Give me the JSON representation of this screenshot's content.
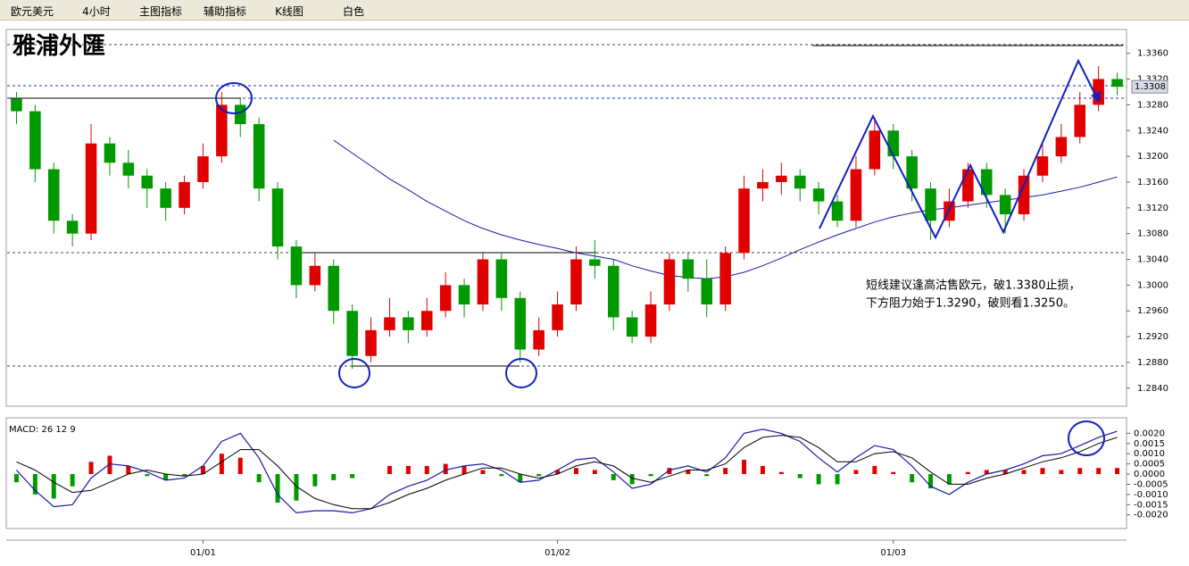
{
  "toolbar": [
    "欧元美元",
    "4小时",
    "主图指标",
    "辅助指标",
    "K线图",
    "白色"
  ],
  "logo": "雅浦外匯",
  "annotation": [
    "短线建议逢高沽售欧元，破1.3380止损，",
    "下方阻力始于1.3290，破则看1.3250。"
  ],
  "chart_data": {
    "type": "candlestick",
    "categories": [
      null,
      null,
      null,
      null,
      null,
      null,
      null,
      null,
      null,
      null,
      "01/01",
      null,
      null,
      null,
      null,
      null,
      null,
      null,
      null,
      null,
      null,
      null,
      null,
      null,
      null,
      null,
      null,
      null,
      null,
      "01/02",
      null,
      null,
      null,
      null,
      null,
      null,
      null,
      null,
      null,
      null,
      null,
      null,
      null,
      null,
      null,
      null,
      null,
      "01/03",
      null,
      null,
      null,
      null,
      null,
      null,
      null,
      null,
      null,
      null,
      null,
      null
    ],
    "open": [
      1.329,
      1.327,
      1.318,
      1.31,
      1.308,
      1.322,
      1.319,
      1.317,
      1.315,
      1.312,
      1.316,
      1.32,
      1.328,
      1.325,
      1.315,
      1.306,
      1.3,
      1.303,
      1.296,
      1.289,
      1.293,
      1.295,
      1.293,
      1.296,
      1.3,
      1.297,
      1.304,
      1.298,
      1.29,
      1.293,
      1.297,
      1.304,
      1.303,
      1.295,
      1.292,
      1.297,
      1.304,
      1.301,
      1.297,
      1.305,
      1.315,
      1.316,
      1.317,
      1.315,
      1.313,
      1.31,
      1.318,
      1.324,
      1.32,
      1.315,
      1.31,
      1.313,
      1.318,
      1.314,
      1.311,
      1.317,
      1.32,
      1.323,
      1.328,
      1.332
    ],
    "high": [
      1.33,
      1.328,
      1.319,
      1.311,
      1.325,
      1.323,
      1.321,
      1.318,
      1.316,
      1.317,
      1.322,
      1.33,
      1.329,
      1.326,
      1.316,
      1.307,
      1.305,
      1.304,
      1.297,
      1.295,
      1.298,
      1.296,
      1.298,
      1.302,
      1.301,
      1.305,
      1.305,
      1.299,
      1.295,
      1.299,
      1.306,
      1.307,
      1.304,
      1.296,
      1.299,
      1.305,
      1.305,
      1.304,
      1.306,
      1.317,
      1.318,
      1.319,
      1.318,
      1.316,
      1.314,
      1.32,
      1.326,
      1.325,
      1.321,
      1.316,
      1.315,
      1.319,
      1.319,
      1.315,
      1.318,
      1.322,
      1.325,
      1.33,
      1.334,
      1.333
    ],
    "low": [
      1.325,
      1.316,
      1.308,
      1.306,
      1.307,
      1.317,
      1.315,
      1.312,
      1.31,
      1.311,
      1.315,
      1.319,
      1.323,
      1.313,
      1.304,
      1.298,
      1.299,
      1.294,
      1.287,
      1.288,
      1.292,
      1.291,
      1.292,
      1.295,
      1.295,
      1.296,
      1.296,
      1.288,
      1.289,
      1.292,
      1.296,
      1.301,
      1.293,
      1.291,
      1.291,
      1.296,
      1.299,
      1.295,
      1.296,
      1.304,
      1.313,
      1.314,
      1.313,
      1.311,
      1.309,
      1.309,
      1.317,
      1.318,
      1.313,
      1.307,
      1.309,
      1.312,
      1.312,
      1.308,
      1.31,
      1.316,
      1.319,
      1.322,
      1.327,
      1.3295
    ],
    "close": [
      1.327,
      1.318,
      1.31,
      1.308,
      1.322,
      1.319,
      1.317,
      1.315,
      1.312,
      1.316,
      1.32,
      1.328,
      1.325,
      1.315,
      1.306,
      1.3,
      1.303,
      1.296,
      1.289,
      1.293,
      1.295,
      1.293,
      1.296,
      1.3,
      1.297,
      1.304,
      1.298,
      1.29,
      1.293,
      1.297,
      1.304,
      1.303,
      1.295,
      1.292,
      1.297,
      1.304,
      1.301,
      1.297,
      1.305,
      1.315,
      1.316,
      1.317,
      1.315,
      1.313,
      1.31,
      1.318,
      1.324,
      1.32,
      1.315,
      1.31,
      1.313,
      1.318,
      1.314,
      1.311,
      1.317,
      1.32,
      1.323,
      1.328,
      1.332,
      1.3308
    ],
    "up_color": "#e00000",
    "down_color": "#009900",
    "ma": {
      "color": "#1a1aa6",
      "values": [
        null,
        null,
        null,
        null,
        null,
        null,
        null,
        null,
        null,
        null,
        null,
        null,
        null,
        null,
        null,
        null,
        null,
        1.3225,
        1.3205,
        1.3185,
        1.3165,
        1.3148,
        1.313,
        1.3115,
        1.31,
        1.3088,
        1.3078,
        1.307,
        1.3063,
        1.3057,
        1.305,
        1.3045,
        1.304,
        1.303,
        1.3022,
        1.3015,
        1.3012,
        1.301,
        1.3013,
        1.302,
        1.303,
        1.3042,
        1.3055,
        1.3067,
        1.3078,
        1.3088,
        1.3098,
        1.3106,
        1.3112,
        1.3117,
        1.312,
        1.3124,
        1.3128,
        1.3132,
        1.3136,
        1.314,
        1.3146,
        1.3152,
        1.316,
        1.3168
      ]
    },
    "last": {
      "value": 1.3308,
      "label": "1.3308"
    },
    "ylim": [
      1.2812,
      1.3397
    ],
    "yticks": [
      {
        "value": 1.284,
        "label": "1.2840"
      },
      {
        "value": 1.288,
        "label": "1.2880"
      },
      {
        "value": 1.292,
        "label": "1.2920"
      },
      {
        "value": 1.296,
        "label": "1.2960"
      },
      {
        "value": 1.3,
        "label": "1.3000"
      },
      {
        "value": 1.304,
        "label": "1.3040"
      },
      {
        "value": 1.308,
        "label": "1.3080"
      },
      {
        "value": 1.312,
        "label": "1.3120"
      },
      {
        "value": 1.316,
        "label": "1.3160"
      },
      {
        "value": 1.32,
        "label": "1.3200"
      },
      {
        "value": 1.324,
        "label": "1.3240"
      },
      {
        "value": 1.328,
        "label": "1.3280"
      },
      {
        "value": 1.332,
        "label": "1.3320"
      },
      {
        "value": 1.336,
        "label": "1.3360"
      }
    ],
    "macd_label": "MACD: 26 12 9",
    "macd": {
      "color": "#1a1aa6",
      "values": [
        0.0002,
        -0.0008,
        -0.0016,
        -0.0015,
        -0.0002,
        0.0005,
        0.0004,
        0.0001,
        -0.0003,
        -0.0002,
        0.0004,
        0.0016,
        0.002,
        0.0008,
        -0.001,
        -0.0019,
        -0.0018,
        -0.0018,
        -0.0019,
        -0.0017,
        -0.001,
        -0.0006,
        -0.0003,
        0.0002,
        0.0004,
        0.0005,
        0.0002,
        -0.0004,
        -0.0003,
        0.0002,
        0.0007,
        0.0008,
        0.0001,
        -0.0007,
        -0.0005,
        0.0002,
        0.0004,
        0.0001,
        0.0008,
        0.002,
        0.0022,
        0.002,
        0.0016,
        0.0008,
        0.0001,
        0.0008,
        0.0014,
        0.0012,
        0.0004,
        -0.0006,
        -0.001,
        -0.0004,
        0.0,
        0.0002,
        0.0005,
        0.0009,
        0.001,
        0.0014,
        0.0018,
        0.0021
      ]
    },
    "signal": {
      "color": "#000000",
      "values": [
        0.0006,
        0.0002,
        -0.0004,
        -0.0009,
        -0.0008,
        -0.0004,
        0.0,
        0.0002,
        0.0,
        -0.0001,
        0.0,
        0.0006,
        0.0012,
        0.0012,
        0.0004,
        -0.0006,
        -0.0012,
        -0.0015,
        -0.0017,
        -0.0017,
        -0.0014,
        -0.001,
        -0.0007,
        -0.0003,
        0.0,
        0.0003,
        0.0003,
        0.0,
        -0.0002,
        0.0,
        0.0004,
        0.0006,
        0.0004,
        -0.0002,
        -0.0004,
        -0.0001,
        0.0002,
        0.0002,
        0.0005,
        0.0013,
        0.0018,
        0.0019,
        0.0018,
        0.0013,
        0.0006,
        0.0006,
        0.001,
        0.0011,
        0.0008,
        0.0001,
        -0.0005,
        -0.0005,
        -0.0002,
        0.0,
        0.0003,
        0.0006,
        0.0008,
        0.0011,
        0.0015,
        0.0018
      ]
    },
    "histogram": [
      -0.0004,
      -0.001,
      -0.0012,
      -0.0006,
      0.0006,
      0.0009,
      0.0004,
      -0.0001,
      -0.0003,
      -0.0001,
      0.0004,
      0.001,
      0.0008,
      -0.0004,
      -0.0014,
      -0.0013,
      -0.0006,
      -0.0003,
      -0.0002,
      0.0,
      0.0004,
      0.0004,
      0.0004,
      0.0005,
      0.0004,
      0.0002,
      -0.0001,
      -0.0004,
      -0.0001,
      0.0002,
      0.0003,
      0.0002,
      -0.0003,
      -0.0005,
      -0.0001,
      0.0003,
      0.0002,
      -0.0001,
      0.0003,
      0.0007,
      0.0004,
      0.0001,
      -0.0002,
      -0.0005,
      -0.0005,
      0.0002,
      0.0004,
      0.0001,
      -0.0004,
      -0.0007,
      -0.0005,
      0.0001,
      0.0002,
      0.0002,
      0.0002,
      0.0003,
      0.0002,
      0.0003,
      0.0003,
      0.0003
    ],
    "macd_ylim": [
      -0.00267,
      0.00276
    ],
    "macd_yticks": [
      {
        "value": -0.002,
        "label": "-0.0020"
      },
      {
        "value": -0.0015,
        "label": "-0.0015"
      },
      {
        "value": -0.001,
        "label": "-0.0010"
      },
      {
        "value": -0.0005,
        "label": "-0.0005"
      },
      {
        "value": 0,
        "label": "0.0000"
      },
      {
        "value": 0.0005,
        "label": "0.0005"
      },
      {
        "value": 0.001,
        "label": "0.0010"
      },
      {
        "value": 0.0015,
        "label": "0.0015"
      },
      {
        "value": 0.002,
        "label": "0.0020"
      }
    ]
  }
}
